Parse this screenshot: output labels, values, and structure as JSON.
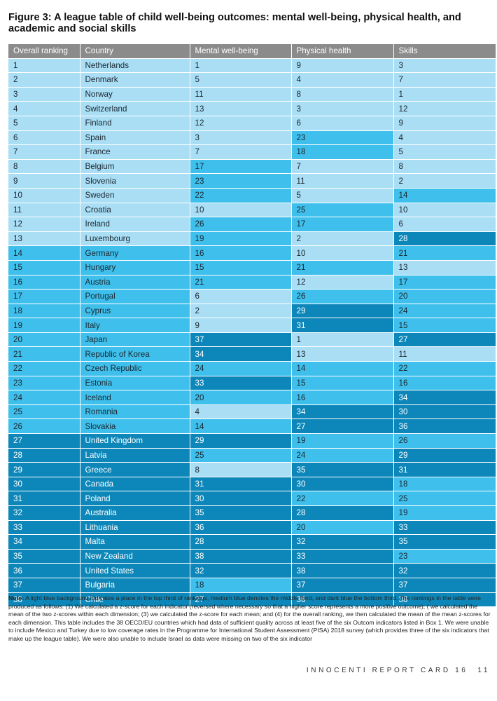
{
  "title": "Figure 3: A league table of child well-being outcomes: mental well-being, physical health, and academic and social skills",
  "table": {
    "headers": [
      "Overall ranking",
      "Country",
      "Mental well-being",
      "Physical health",
      "Skills"
    ],
    "rows": [
      [
        "1",
        "Netherlands",
        "1",
        "9",
        "3"
      ],
      [
        "2",
        "Denmark",
        "5",
        "4",
        "7"
      ],
      [
        "3",
        "Norway",
        "11",
        "8",
        "1"
      ],
      [
        "4",
        "Switzerland",
        "13",
        "3",
        "12"
      ],
      [
        "5",
        "Finland",
        "12",
        "6",
        "9"
      ],
      [
        "6",
        "Spain",
        "3",
        "23",
        "4"
      ],
      [
        "7",
        "France",
        "7",
        "18",
        "5"
      ],
      [
        "8",
        "Belgium",
        "17",
        "7",
        "8"
      ],
      [
        "9",
        "Slovenia",
        "23",
        "11",
        "2"
      ],
      [
        "10",
        "Sweden",
        "22",
        "5",
        "14"
      ],
      [
        "11",
        "Croatia",
        "10",
        "25",
        "10"
      ],
      [
        "12",
        "Ireland",
        "26",
        "17",
        "6"
      ],
      [
        "13",
        "Luxembourg",
        "19",
        "2",
        "28"
      ],
      [
        "14",
        "Germany",
        "16",
        "10",
        "21"
      ],
      [
        "15",
        "Hungary",
        "15",
        "21",
        "13"
      ],
      [
        "16",
        "Austria",
        "21",
        "12",
        "17"
      ],
      [
        "17",
        "Portugal",
        "6",
        "26",
        "20"
      ],
      [
        "18",
        "Cyprus",
        "2",
        "29",
        "24"
      ],
      [
        "19",
        "Italy",
        "9",
        "31",
        "15"
      ],
      [
        "20",
        "Japan",
        "37",
        "1",
        "27"
      ],
      [
        "21",
        "Republic of Korea",
        "34",
        "13",
        "11"
      ],
      [
        "22",
        "Czech Republic",
        "24",
        "14",
        "22"
      ],
      [
        "23",
        "Estonia",
        "33",
        "15",
        "16"
      ],
      [
        "24",
        "Iceland",
        "20",
        "16",
        "34"
      ],
      [
        "25",
        "Romania",
        "4",
        "34",
        "30"
      ],
      [
        "26",
        "Slovakia",
        "14",
        "27",
        "36"
      ],
      [
        "27",
        "United Kingdom",
        "29",
        "19",
        "26"
      ],
      [
        "28",
        "Latvia",
        "25",
        "24",
        "29"
      ],
      [
        "29",
        "Greece",
        "8",
        "35",
        "31"
      ],
      [
        "30",
        "Canada",
        "31",
        "30",
        "18"
      ],
      [
        "31",
        "Poland",
        "30",
        "22",
        "25"
      ],
      [
        "32",
        "Australia",
        "35",
        "28",
        "19"
      ],
      [
        "33",
        "Lithuania",
        "36",
        "20",
        "33"
      ],
      [
        "34",
        "Malta",
        "28",
        "32",
        "35"
      ],
      [
        "35",
        "New Zealand",
        "38",
        "33",
        "23"
      ],
      [
        "36",
        "United States",
        "32",
        "38",
        "32"
      ],
      [
        "37",
        "Bulgaria",
        "18",
        "37",
        "37"
      ],
      [
        "38",
        "Chile",
        "27",
        "36",
        "38"
      ]
    ]
  },
  "colors": {
    "header": "#8b8b8b",
    "light": "#a9def5",
    "medium": "#3fc0ec",
    "dark": "#0d87b9"
  },
  "note": {
    "label": "Note:",
    "text": "A light blue background indicates a place in the top third of rankings, medium blue denotes the middle third, and dark blue the bottom third. The rankings in the table were produced as follows: (1) We calculated a z-score for each indicator (reversed where necessary so that a higher score represents a more positive outcome); ( we calculated the mean of the two z-scores within each dimension; (3) we calculated the z-score for each mean; and (4) for the overall ranking, we then calculated the mean of the mean z-scores for each dimension. This table includes the 38 OECD/EU countries which had data of sufficient quality across at least five of the six Outcom indicators listed in Box 1. We were unable to include Mexico and Turkey due to low coverage rates in the Programme for International Student Assessment (PISA) 2018 survey (which provides three of the six indicators that make up the league table). We were also unable to include Israel as data were missing on two of the six indicator"
  },
  "footer": {
    "publication": "INNOCENTI REPORT CARD 16",
    "page": "11"
  }
}
